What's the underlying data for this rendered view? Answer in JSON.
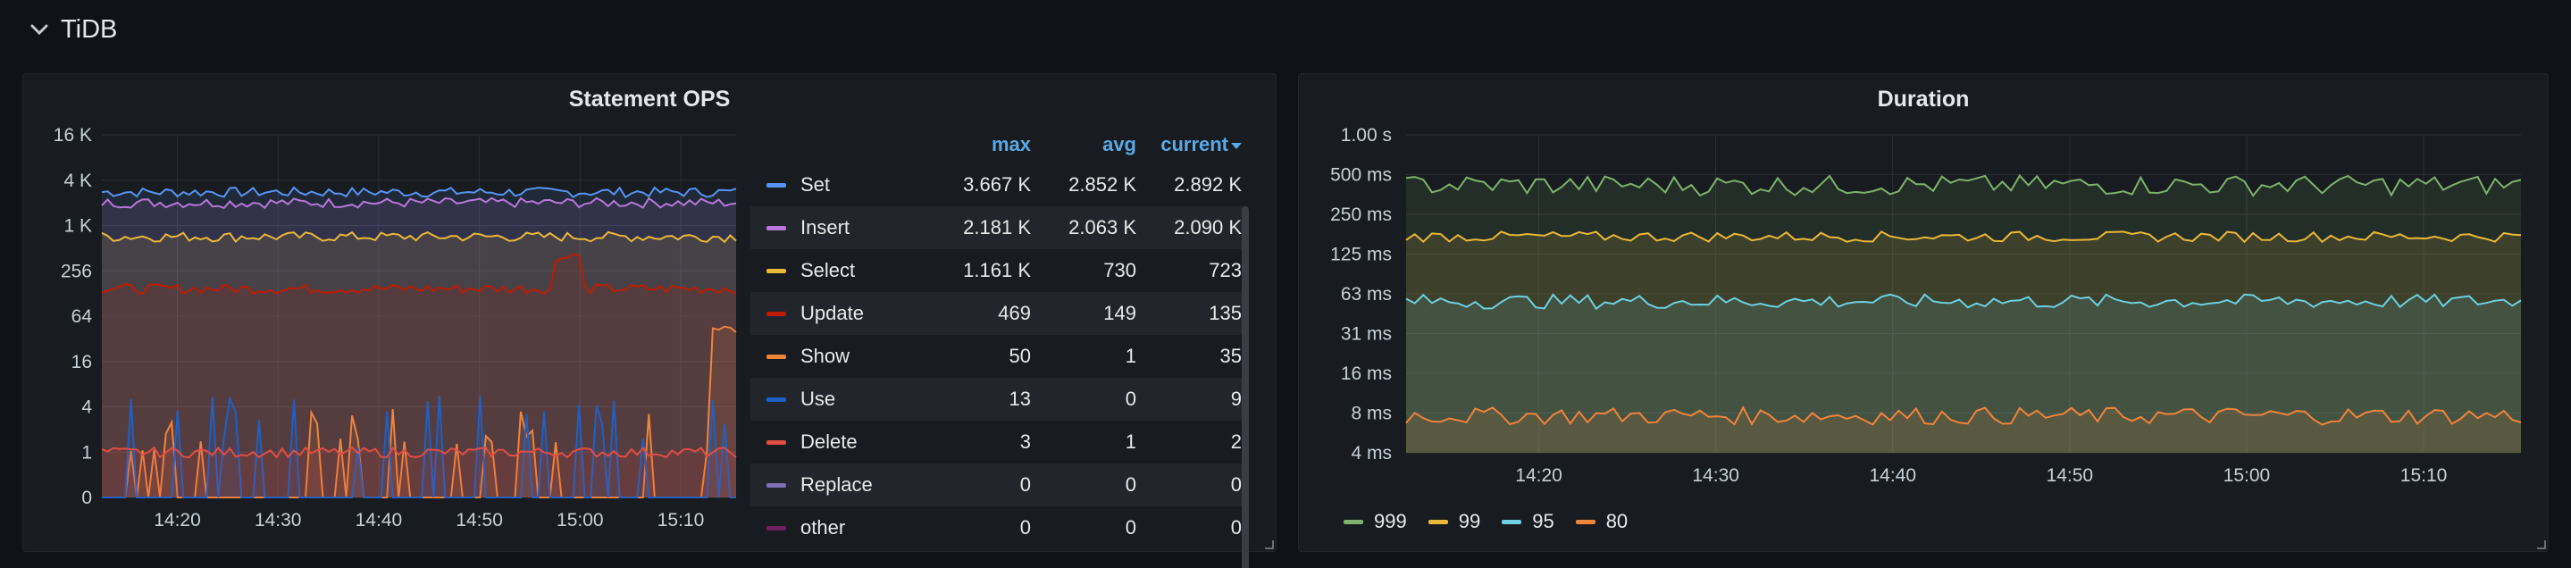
{
  "row": {
    "title": "TiDB",
    "chevron_icon": "chevron-down-icon"
  },
  "statement_ops": {
    "title": "Statement OPS",
    "columns": {
      "max": "max",
      "avg": "avg",
      "current": "current"
    },
    "rows": [
      {
        "name": "Set",
        "color": "#5794f2",
        "max": "3.667 K",
        "avg": "2.852 K",
        "current": "2.892 K"
      },
      {
        "name": "Insert",
        "color": "#b877d9",
        "max": "2.181 K",
        "avg": "2.063 K",
        "current": "2.090 K"
      },
      {
        "name": "Select",
        "color": "#eab839",
        "max": "1.161 K",
        "avg": "730",
        "current": "723"
      },
      {
        "name": "Update",
        "color": "#bf1b00",
        "max": "469",
        "avg": "149",
        "current": "135"
      },
      {
        "name": "Show",
        "color": "#ef843c",
        "max": "50",
        "avg": "1",
        "current": "35"
      },
      {
        "name": "Use",
        "color": "#1f60c4",
        "max": "13",
        "avg": "0",
        "current": "9"
      },
      {
        "name": "Delete",
        "color": "#e24d42",
        "max": "3",
        "avg": "1",
        "current": "2"
      },
      {
        "name": "Replace",
        "color": "#806eb7",
        "max": "0",
        "avg": "0",
        "current": "0"
      },
      {
        "name": "other",
        "color": "#6d1f62",
        "max": "0",
        "avg": "0",
        "current": "0"
      }
    ]
  },
  "duration": {
    "title": "Duration",
    "legend": [
      {
        "name": "999",
        "color": "#7eb26d"
      },
      {
        "name": "99",
        "color": "#eab839"
      },
      {
        "name": "95",
        "color": "#6ed0e0"
      },
      {
        "name": "80",
        "color": "#ef843c"
      }
    ]
  },
  "chart_data": [
    {
      "type": "line",
      "title": "Statement OPS",
      "scale": "log",
      "y_ticks": [
        "16 K",
        "4 K",
        "1 K",
        "256",
        "64",
        "16",
        "4",
        "1",
        "0"
      ],
      "x_ticks": [
        "14:20",
        "14:30",
        "14:40",
        "14:50",
        "15:00",
        "15:10"
      ],
      "series": [
        {
          "name": "Set",
          "color": "#5794f2",
          "typical": 2852,
          "max": 3667
        },
        {
          "name": "Insert",
          "color": "#b877d9",
          "typical": 2063,
          "max": 2181
        },
        {
          "name": "Select",
          "color": "#eab839",
          "typical": 730,
          "max": 1161
        },
        {
          "name": "Update",
          "color": "#bf1b00",
          "typical": 149,
          "max": 469
        },
        {
          "name": "Show",
          "color": "#ef843c",
          "typical": 1,
          "max": 50
        },
        {
          "name": "Use",
          "color": "#1f60c4",
          "typical": 0,
          "max": 13
        },
        {
          "name": "Delete",
          "color": "#e24d42",
          "typical": 1,
          "max": 3
        }
      ]
    },
    {
      "type": "area",
      "title": "Duration",
      "scale": "log",
      "y_ticks": [
        "1.00 s",
        "500 ms",
        "250 ms",
        "125 ms",
        "63 ms",
        "31 ms",
        "16 ms",
        "8 ms",
        "4 ms"
      ],
      "x_ticks": [
        "14:20",
        "14:30",
        "14:40",
        "14:50",
        "15:00",
        "15:10"
      ],
      "series": [
        {
          "name": "999",
          "color": "#7eb26d",
          "typical_ms": 420
        },
        {
          "name": "99",
          "color": "#eab839",
          "typical_ms": 170
        },
        {
          "name": "95",
          "color": "#6ed0e0",
          "typical_ms": 55
        },
        {
          "name": "80",
          "color": "#ef843c",
          "typical_ms": 7.5
        }
      ]
    }
  ]
}
